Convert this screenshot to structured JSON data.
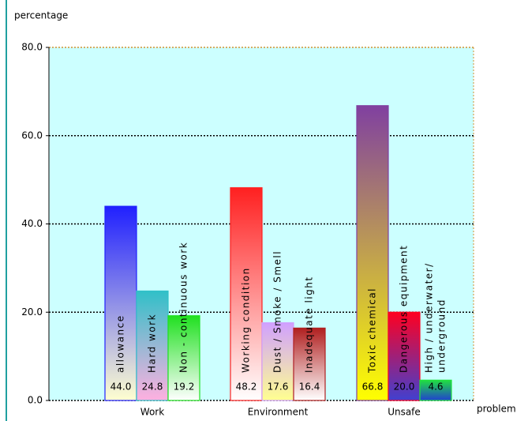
{
  "chart_data": {
    "type": "grouped-bar",
    "ylabel": "percentage",
    "xlabel": "problem",
    "ylim": [
      0,
      80
    ],
    "yticks": [
      {
        "value": 0,
        "label": "0.0"
      },
      {
        "value": 20,
        "label": "20.0"
      },
      {
        "value": 40,
        "label": "40.0"
      },
      {
        "value": 60,
        "label": "60.0"
      },
      {
        "value": 80,
        "label": "80.0"
      }
    ],
    "grid": true,
    "groups": [
      {
        "category": "Work",
        "bars": [
          {
            "name": [
              "allowance"
            ],
            "value": 44,
            "value_label": "44.0",
            "color": [
              "#2020ff",
              "#ffffd0"
            ]
          },
          {
            "name": [
              "Hard work"
            ],
            "value": 24.8,
            "value_label": "24.8",
            "color": [
              "#30c0c8",
              "#ffb0e0"
            ]
          },
          {
            "name": [
              "Non - continuous work"
            ],
            "value": 19.2,
            "value_label": "19.2",
            "color": [
              "#20e020",
              "#ffffff"
            ]
          }
        ]
      },
      {
        "category": "Environment",
        "bars": [
          {
            "name": [
              "Working condition"
            ],
            "value": 48.2,
            "value_label": "48.2",
            "color": [
              "#ff2020",
              "#ffffff"
            ]
          },
          {
            "name": [
              "Dust / Smoke / Smell"
            ],
            "value": 17.6,
            "value_label": "17.6",
            "color": [
              "#d0a0ff",
              "#ffff90"
            ]
          },
          {
            "name": [
              "Inadequate light"
            ],
            "value": 16.4,
            "value_label": "16.4",
            "color": [
              "#b02020",
              "#ffffff"
            ]
          }
        ]
      },
      {
        "category": "Unsafe",
        "bars": [
          {
            "name": [
              "Toxic chemical"
            ],
            "value": 66.8,
            "value_label": "66.8",
            "color": [
              "#8040a0",
              "#ffff00"
            ]
          },
          {
            "name": [
              "Dangerous equipment"
            ],
            "value": 20,
            "value_label": "20.0",
            "color": [
              "#ff0020",
              "#4040d0"
            ]
          },
          {
            "name": [
              "High / underwater/",
              "underground"
            ],
            "value": 4.6,
            "value_label": "4.6",
            "color": [
              "#20e040",
              "#2040d0"
            ]
          }
        ]
      }
    ]
  }
}
